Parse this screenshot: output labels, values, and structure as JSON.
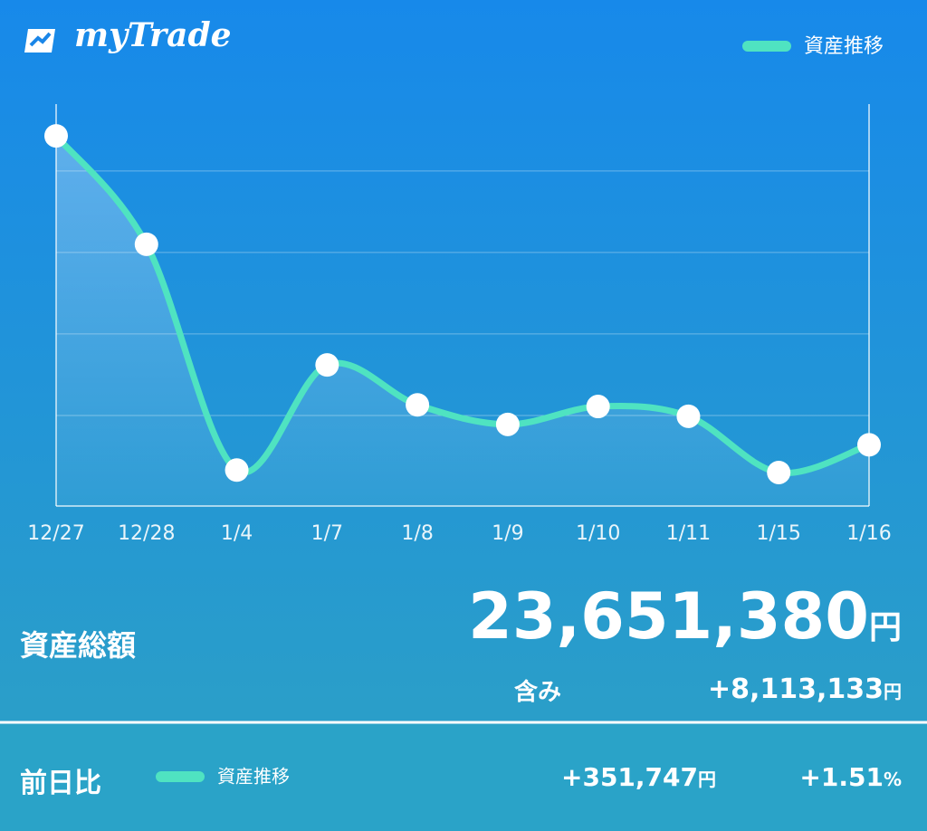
{
  "app": {
    "brand": "myTrade"
  },
  "chart_data": {
    "type": "line",
    "categories": [
      "12/27",
      "12/28",
      "1/4",
      "1/7",
      "1/8",
      "1/9",
      "1/10",
      "1/11",
      "1/15",
      "1/16"
    ],
    "series": [
      {
        "name": "資産推移",
        "color": "#4fe3c1",
        "values": [
          4.43,
          3.1,
          0.33,
          1.62,
          1.13,
          0.89,
          1.11,
          0.99,
          0.3,
          0.64
        ]
      }
    ],
    "ylim": [
      0,
      4.82
    ],
    "yticks": [
      1,
      2,
      3,
      4
    ],
    "ytick_labels": false,
    "grid": true,
    "legend": "top-right"
  },
  "summary": {
    "total_label": "資産総額",
    "total": "23,651,380",
    "total_unit": "円",
    "unrealized_label": "含み",
    "unrealized": "+8,113,133",
    "unrealized_unit": "円"
  },
  "daily": {
    "label": "前日比",
    "legend": "資産推移",
    "change": "+351,747",
    "change_unit": "円",
    "percent": "+1.51",
    "percent_unit": "%"
  }
}
